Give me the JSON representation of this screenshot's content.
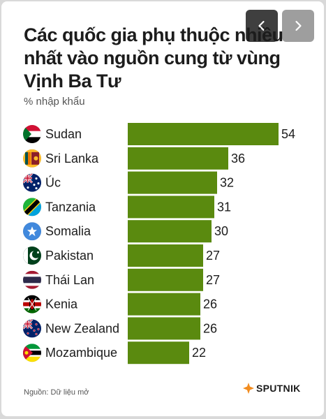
{
  "navigation": {
    "prev_icon": "chevron-left-icon",
    "next_icon": "chevron-right-icon"
  },
  "colors": {
    "bar": "#5a8a0f",
    "text": "#1c1c1c",
    "prev_bg": "#3f3f3f",
    "next_bg": "#9e9e9e"
  },
  "chart_data": {
    "type": "bar",
    "orientation": "horizontal",
    "title": "Các quốc gia phụ thuộc nhiều nhất vào nguồn cung từ vùng Vịnh Ba Tư",
    "subtitle": "% nhập khẩu",
    "categories": [
      "Sudan",
      "Sri Lanka",
      "Úc",
      "Tanzania",
      "Somalia",
      "Pakistan",
      "Thái Lan",
      "Kenia",
      "New Zealand",
      "Mozambique"
    ],
    "values": [
      54,
      36,
      32,
      31,
      30,
      27,
      27,
      26,
      26,
      22
    ],
    "flags": [
      "sudan-flag-icon",
      "sri-lanka-flag-icon",
      "australia-flag-icon",
      "tanzania-flag-icon",
      "somalia-flag-icon",
      "pakistan-flag-icon",
      "thailand-flag-icon",
      "kenya-flag-icon",
      "new-zealand-flag-icon",
      "mozambique-flag-icon"
    ],
    "xlim": [
      0,
      54
    ],
    "grid": false
  },
  "footer": {
    "source": "Nguồn: Dữ liệu mở",
    "logo_text": "SPUTNIK"
  }
}
